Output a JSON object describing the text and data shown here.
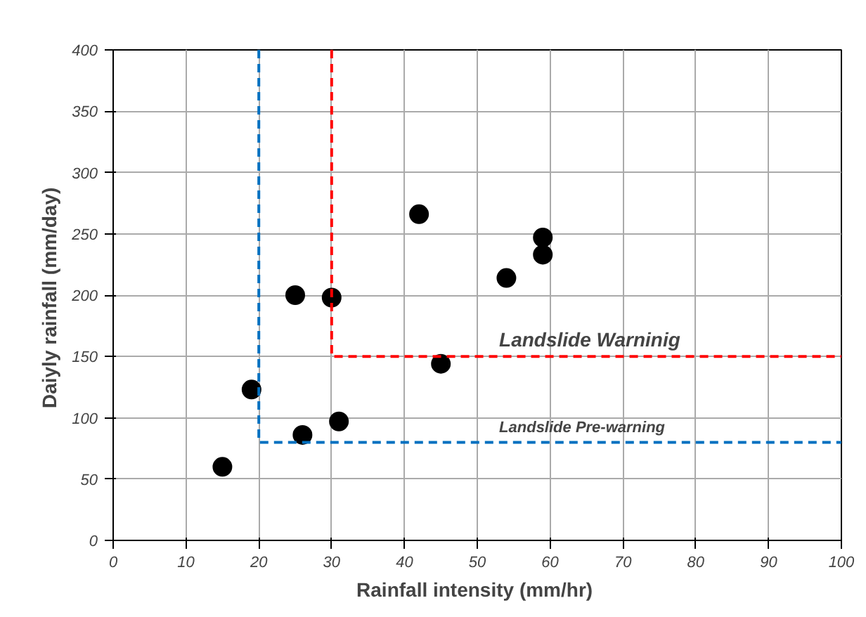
{
  "chart_data": {
    "type": "scatter",
    "xlabel": "Rainfall intensity  (mm/hr)",
    "ylabel": "Daiyly rainfall  (mm/day)",
    "xlim": [
      0,
      100
    ],
    "ylim": [
      0,
      400
    ],
    "xticks": [
      0,
      10,
      20,
      30,
      40,
      50,
      60,
      70,
      80,
      90,
      100
    ],
    "yticks": [
      0,
      50,
      100,
      150,
      200,
      250,
      300,
      350,
      400
    ],
    "grid": true,
    "marker": "circle",
    "series": [
      {
        "color": "#000000",
        "x": [
          15,
          19,
          25,
          26,
          30,
          31,
          42,
          45,
          54,
          59,
          59
        ],
        "values": [
          60,
          123,
          200,
          86,
          198,
          97,
          266,
          144,
          214,
          233,
          247
        ]
      },
      {
        "type": "line",
        "color": "#0070c0",
        "line_style": "dashed",
        "marker": "none",
        "x": [
          20,
          20,
          100
        ],
        "values": [
          400,
          80,
          80
        ]
      },
      {
        "type": "line",
        "color": "#ff0000",
        "line_style": "dashed",
        "marker": "none",
        "x": [
          30,
          30,
          100
        ],
        "values": [
          400,
          150,
          150
        ]
      }
    ],
    "annotations": [
      {
        "text": "Landslide  Warninig",
        "x": 53,
        "y": 150
      },
      {
        "text": "Landslide Pre-warning",
        "x": 53,
        "y": 80
      }
    ]
  }
}
